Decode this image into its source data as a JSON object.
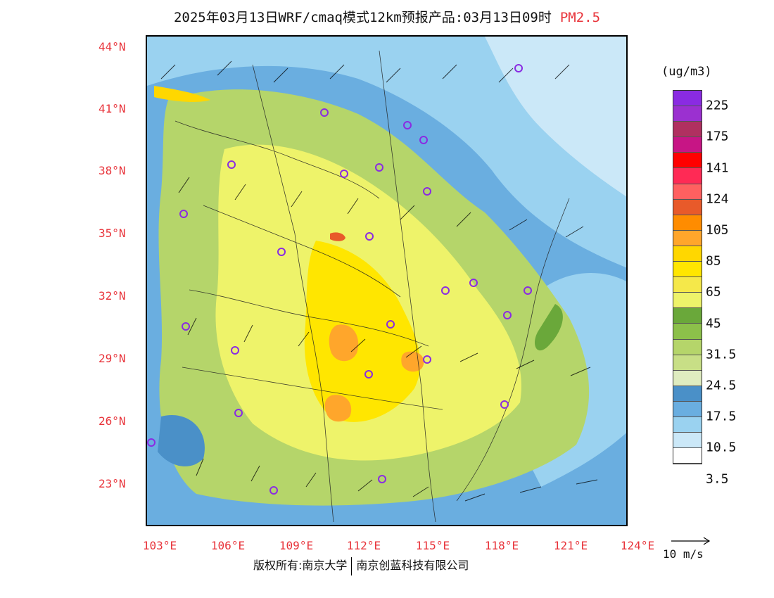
{
  "title": {
    "main": "2025年03月13日WRF/cmaq模式12km预报产品:03月13日09时",
    "variable": "PM2.5"
  },
  "map": {
    "lat_labels": [
      "44°N",
      "41°N",
      "38°N",
      "35°N",
      "32°N",
      "29°N",
      "26°N",
      "23°N"
    ],
    "lon_labels": [
      "103°E",
      "106°E",
      "109°E",
      "112°E",
      "115°E",
      "118°E",
      "121°E",
      "124°E"
    ]
  },
  "colorbar": {
    "unit": "(ug/m3)",
    "colors": [
      "#8a2be2",
      "#9b30d0",
      "#b03060",
      "#c71585",
      "#ff0000",
      "#ff2a55",
      "#ff6060",
      "#e85a2a",
      "#ff8c00",
      "#ffa62b",
      "#ffd700",
      "#ffe600",
      "#f5e84a",
      "#eef36a",
      "#6aa83a",
      "#8cc04a",
      "#b5d56a",
      "#c8df86",
      "#dfecc0",
      "#4a90c8",
      "#6aaee0",
      "#9ad2f0",
      "#cbe8f8",
      "#ffffff"
    ],
    "labels": [
      "225",
      "175",
      "141",
      "124",
      "105",
      "85",
      "65",
      "45",
      "31.5",
      "24.5",
      "17.5",
      "10.5",
      "3.5"
    ]
  },
  "vector_reference": "10 m/s",
  "footer": {
    "left": "版权所有:南京大学",
    "right": "南京创蓝科技有限公司"
  }
}
